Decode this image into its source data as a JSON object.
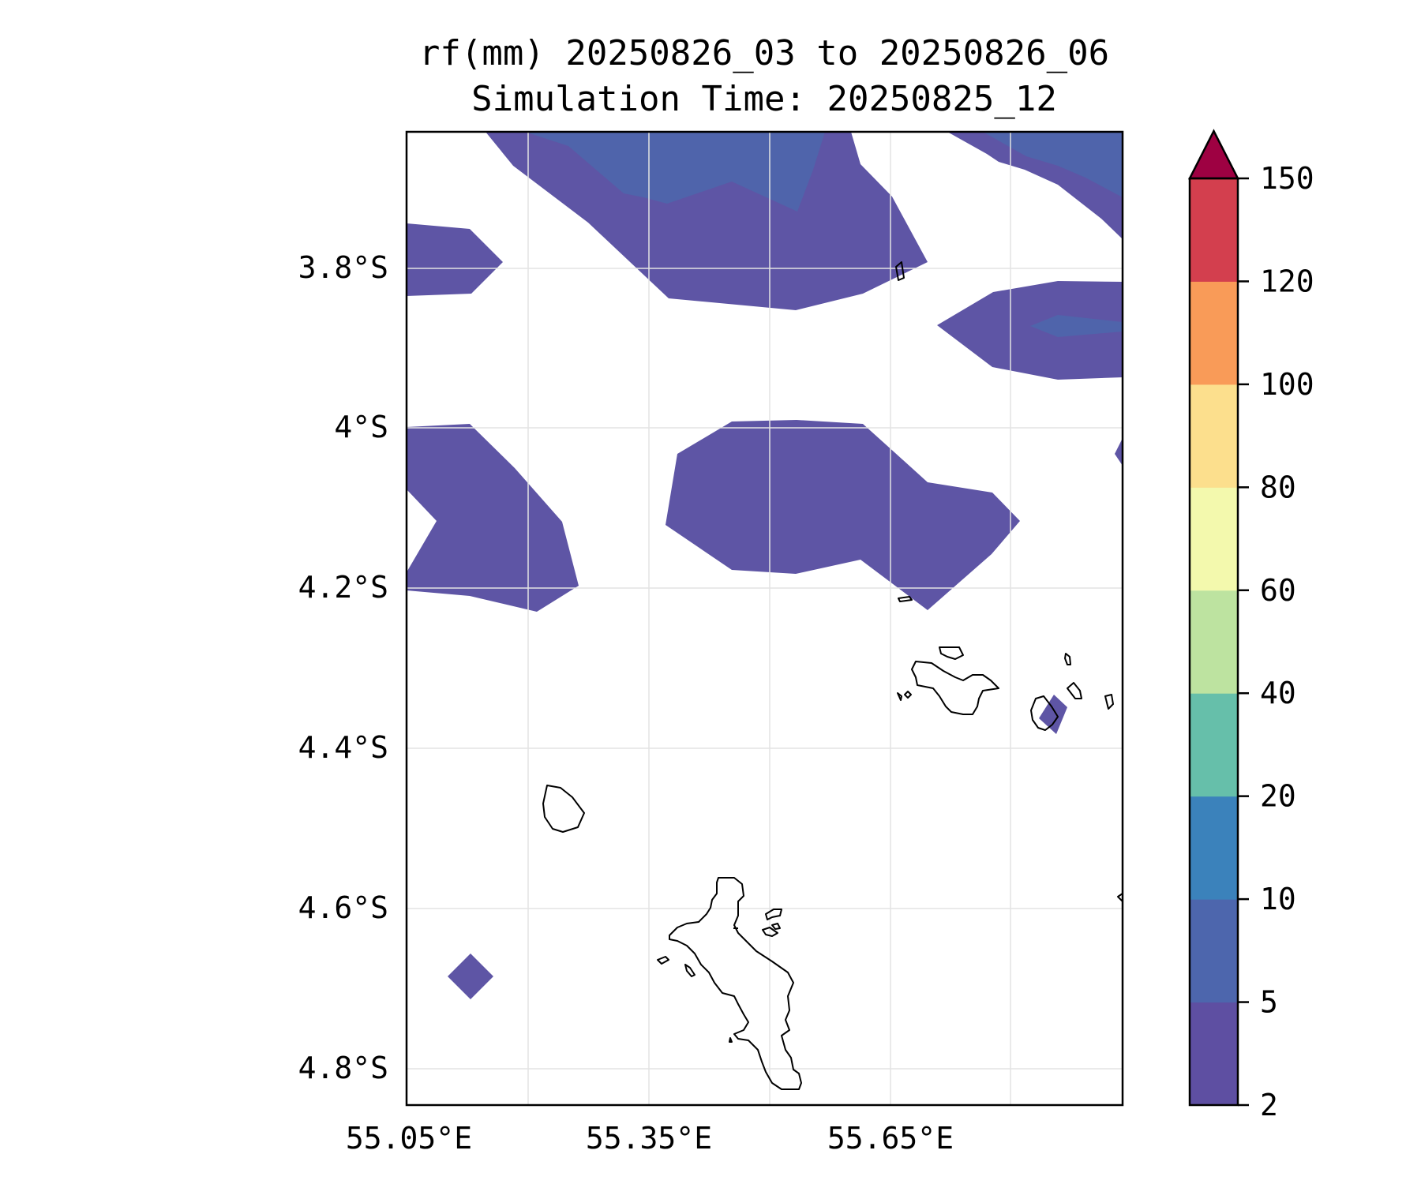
{
  "title": {
    "line1": "rf(mm) 20250826_03 to 20250826_06",
    "line2": "Simulation Time: 20250825_12"
  },
  "map": {
    "lat_labels": [
      "3.8°S",
      "4°S",
      "4.2°S",
      "4.4°S",
      "4.6°S",
      "4.8°S"
    ],
    "lon_labels": [
      "55.05°E",
      "55.35°E",
      "55.65°E"
    ],
    "colors": {
      "level_2_5": "#5e55a5",
      "level_5_10": "#4f64ab",
      "coastline": "#000000",
      "grid": "#e0e0e0"
    }
  },
  "colorbar": {
    "labels": [
      "2",
      "5",
      "10",
      "20",
      "40",
      "60",
      "80",
      "100",
      "120",
      "150"
    ],
    "bands": [
      {
        "from": 2,
        "to": 5,
        "color": "#5e4fa2"
      },
      {
        "from": 5,
        "to": 10,
        "color": "#4d66ad"
      },
      {
        "from": 10,
        "to": 20,
        "color": "#3b82bb"
      },
      {
        "from": 20,
        "to": 40,
        "color": "#66bfaa"
      },
      {
        "from": 40,
        "to": 60,
        "color": "#bde3a0"
      },
      {
        "from": 60,
        "to": 80,
        "color": "#f3f9ad"
      },
      {
        "from": 80,
        "to": 100,
        "color": "#fcdf8d"
      },
      {
        "from": 100,
        "to": 120,
        "color": "#f99b58"
      },
      {
        "from": 120,
        "to": 150,
        "color": "#d33f4e"
      }
    ],
    "extend_color": "#9e0142"
  }
}
